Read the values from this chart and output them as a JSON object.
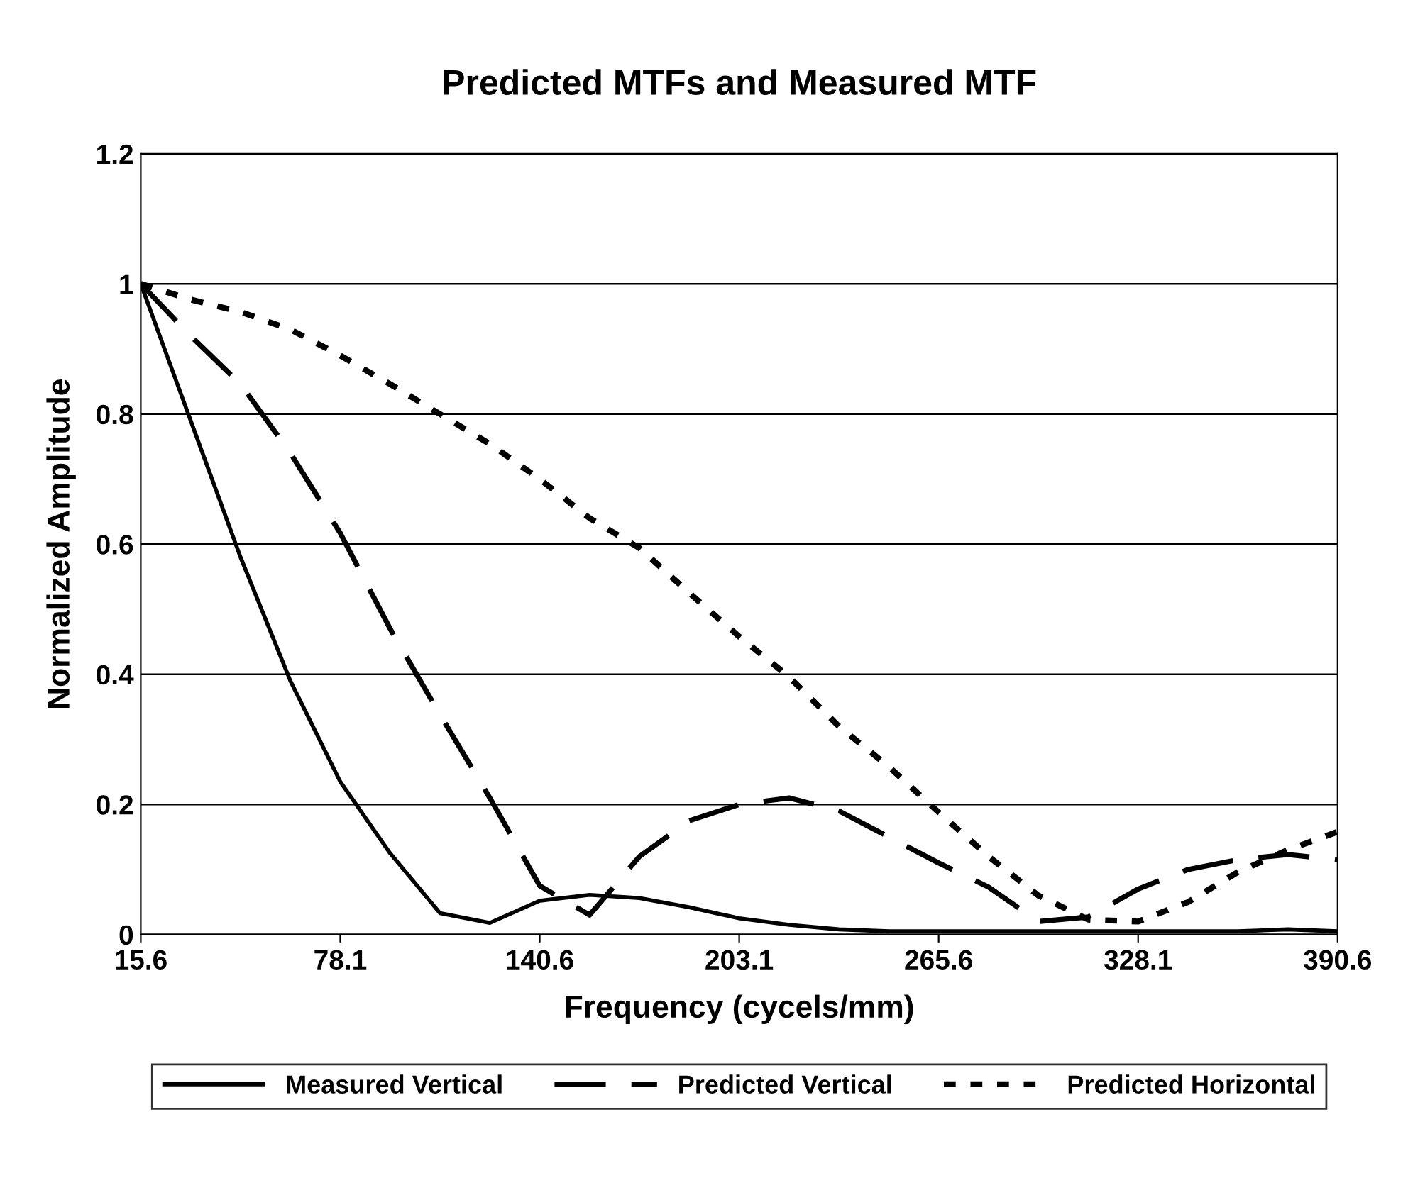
{
  "chart_data": {
    "type": "line",
    "title": "Predicted MTFs and Measured MTF",
    "xlabel": "Frequency (cycels/mm)",
    "ylabel": "Normalized Amplitude",
    "x": [
      15.625,
      31.25,
      46.875,
      62.5,
      78.125,
      93.75,
      109.375,
      125,
      140.625,
      156.25,
      171.875,
      187.5,
      203.125,
      218.75,
      234.375,
      250,
      265.625,
      281.25,
      296.875,
      312.5,
      328.125,
      343.75,
      359.375,
      375,
      390.625
    ],
    "series": [
      {
        "name": "Measured Vertical",
        "color": "#000000",
        "line_style": "solid",
        "values": [
          1.0,
          0.79,
          0.58,
          0.39,
          0.235,
          0.125,
          0.033,
          0.018,
          0.052,
          0.061,
          0.056,
          0.042,
          0.025,
          0.015,
          0.008,
          0.005,
          0.005,
          0.005,
          0.005,
          0.005,
          0.005,
          0.005,
          0.005,
          0.008,
          0.005
        ]
      },
      {
        "name": "Predicted Vertical",
        "color": "#000000",
        "line_style": "dashed",
        "values": [
          1.0,
          0.92,
          0.846,
          0.74,
          0.617,
          0.47,
          0.338,
          0.21,
          0.075,
          0.03,
          0.12,
          0.175,
          0.2,
          0.21,
          0.19,
          0.15,
          0.11,
          0.073,
          0.02,
          0.027,
          0.07,
          0.1,
          0.115,
          0.123,
          0.115
        ]
      },
      {
        "name": "Predicted Horizontal",
        "color": "#000000",
        "line_style": "dotted",
        "values": [
          1.0,
          0.976,
          0.957,
          0.93,
          0.89,
          0.846,
          0.8,
          0.754,
          0.7,
          0.64,
          0.594,
          0.525,
          0.458,
          0.396,
          0.32,
          0.258,
          0.188,
          0.12,
          0.06,
          0.023,
          0.02,
          0.05,
          0.096,
          0.13,
          0.158
        ]
      }
    ],
    "xlim": [
      15.625,
      390.625
    ],
    "xticks": [
      {
        "value": 15.625,
        "label": "15.6"
      },
      {
        "value": 78.125,
        "label": "78.1"
      },
      {
        "value": 140.625,
        "label": "140.6"
      },
      {
        "value": 203.125,
        "label": "203.1"
      },
      {
        "value": 265.625,
        "label": "265.6"
      },
      {
        "value": 328.125,
        "label": "328.1"
      },
      {
        "value": 390.625,
        "label": "390.6"
      }
    ],
    "ylim": [
      0,
      1.2
    ],
    "yticks": [
      0,
      0.2,
      0.4,
      0.6,
      0.8,
      1,
      1.2
    ],
    "grid": "y",
    "legend": "bottom",
    "marker": "none"
  }
}
